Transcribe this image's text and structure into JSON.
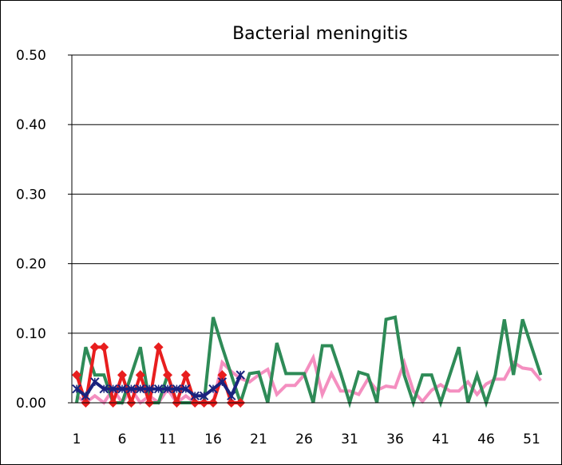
{
  "chart_data": {
    "type": "line",
    "title": "Bacterial meningitis",
    "xlabel": "",
    "ylabel": "",
    "ylim": [
      0,
      0.5
    ],
    "xlim": [
      1,
      52
    ],
    "y_ticks": [
      "0.00",
      "0.10",
      "0.20",
      "0.30",
      "0.40",
      "0.50"
    ],
    "x_ticks": [
      "1",
      "6",
      "11",
      "16",
      "21",
      "26",
      "31",
      "36",
      "41",
      "46",
      "51"
    ],
    "grid": "horizontal",
    "legend": "none",
    "series": [
      {
        "color": "#f48fc0",
        "marker": "none",
        "x": [
          1,
          2,
          3,
          4,
          5,
          6,
          7,
          8,
          9,
          10,
          11,
          12,
          13,
          14,
          15,
          16,
          17,
          18,
          19,
          20,
          21,
          22,
          23,
          24,
          25,
          26,
          27,
          28,
          29,
          30,
          31,
          32,
          33,
          34,
          35,
          36,
          37,
          38,
          39,
          40,
          41,
          42,
          43,
          44,
          45,
          46,
          47,
          48,
          49,
          50,
          51,
          52
        ],
        "values": [
          0.01,
          0.0,
          0.01,
          0.0,
          0.02,
          0.0,
          0.02,
          0.0,
          0.01,
          0.0,
          0.02,
          0.0,
          0.01,
          0.0,
          0.0,
          0.0,
          0.058,
          0.045,
          0.035,
          0.03,
          0.04,
          0.048,
          0.012,
          0.025,
          0.025,
          0.04,
          0.065,
          0.012,
          0.042,
          0.017,
          0.017,
          0.012,
          0.034,
          0.018,
          0.024,
          0.022,
          0.058,
          0.017,
          0.002,
          0.018,
          0.026,
          0.017,
          0.017,
          0.03,
          0.012,
          0.027,
          0.034,
          0.034,
          0.058,
          0.05,
          0.048,
          0.032
        ]
      },
      {
        "color": "#2e8b57",
        "marker": "none",
        "x": [
          1,
          2,
          3,
          4,
          5,
          6,
          7,
          8,
          9,
          10,
          11,
          12,
          13,
          14,
          15,
          16,
          17,
          18,
          19,
          20,
          21,
          22,
          23,
          24,
          25,
          26,
          27,
          28,
          29,
          30,
          31,
          32,
          33,
          34,
          35,
          36,
          37,
          38,
          39,
          40,
          41,
          42,
          43,
          44,
          45,
          46,
          47,
          48,
          49,
          50,
          51,
          52
        ],
        "values": [
          0.0,
          0.08,
          0.04,
          0.04,
          0.0,
          0.0,
          0.04,
          0.08,
          0.0,
          0.0,
          0.04,
          0.0,
          0.0,
          0.0,
          0.0,
          0.123,
          0.08,
          0.04,
          0.0,
          0.042,
          0.044,
          0.0,
          0.086,
          0.042,
          0.042,
          0.042,
          0.0,
          0.082,
          0.082,
          0.043,
          0.0,
          0.044,
          0.04,
          0.0,
          0.12,
          0.123,
          0.04,
          0.0,
          0.04,
          0.04,
          0.0,
          0.04,
          0.08,
          0.0,
          0.04,
          0.0,
          0.04,
          0.12,
          0.04,
          0.12,
          0.08,
          0.04
        ]
      },
      {
        "color": "#e81e1e",
        "marker": "diamond",
        "x": [
          1,
          2,
          3,
          4,
          5,
          6,
          7,
          8,
          9,
          10,
          11,
          12,
          13,
          14,
          15,
          16,
          17,
          18,
          19
        ],
        "values": [
          0.04,
          0.0,
          0.08,
          0.08,
          0.0,
          0.04,
          0.0,
          0.04,
          0.0,
          0.08,
          0.04,
          0.0,
          0.04,
          0.0,
          0.0,
          0.0,
          0.04,
          0.0,
          0.0
        ]
      },
      {
        "color": "#1a237e",
        "marker": "x",
        "x": [
          1,
          2,
          3,
          4,
          5,
          6,
          7,
          8,
          9,
          10,
          11,
          12,
          13,
          14,
          15,
          16,
          17,
          18,
          19
        ],
        "values": [
          0.02,
          0.01,
          0.03,
          0.02,
          0.02,
          0.02,
          0.02,
          0.02,
          0.02,
          0.02,
          0.02,
          0.02,
          0.02,
          0.01,
          0.01,
          0.02,
          0.03,
          0.01,
          0.04
        ]
      }
    ]
  }
}
